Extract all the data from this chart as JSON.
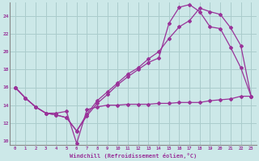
{
  "xlabel": "Windchill (Refroidissement éolien,°C)",
  "background_color": "#cce8e8",
  "grid_color": "#aacccc",
  "line_color": "#993399",
  "xlim": [
    -0.5,
    23.5
  ],
  "ylim": [
    9.5,
    25.5
  ],
  "xticks": [
    0,
    1,
    2,
    3,
    4,
    5,
    6,
    7,
    8,
    9,
    10,
    11,
    12,
    13,
    14,
    15,
    16,
    17,
    18,
    19,
    20,
    21,
    22,
    23
  ],
  "yticks": [
    10,
    12,
    14,
    16,
    18,
    20,
    22,
    24
  ],
  "line1_x": [
    0,
    1,
    2,
    3,
    4,
    5,
    6,
    7,
    8,
    9,
    10,
    11,
    12,
    13,
    14,
    15,
    16,
    17,
    18,
    19,
    20,
    21,
    22,
    23
  ],
  "line1_y": [
    16.0,
    14.8,
    13.8,
    13.1,
    12.9,
    12.6,
    11.1,
    13.0,
    14.5,
    15.5,
    16.5,
    17.5,
    18.2,
    19.2,
    20.0,
    21.5,
    22.8,
    23.5,
    24.9,
    24.5,
    24.2,
    22.7,
    20.7,
    15.0
  ],
  "line2_x": [
    0,
    1,
    2,
    3,
    4,
    5,
    6,
    7,
    8,
    9,
    10,
    11,
    12,
    13,
    14,
    15,
    16,
    17,
    18,
    19,
    20,
    21,
    22,
    23
  ],
  "line2_y": [
    16.0,
    14.8,
    13.8,
    13.1,
    12.9,
    12.6,
    11.1,
    12.8,
    14.2,
    15.2,
    16.3,
    17.2,
    18.0,
    18.8,
    19.3,
    23.2,
    25.0,
    25.3,
    24.5,
    22.8,
    22.6,
    20.5,
    18.2,
    15.0
  ],
  "line3_x": [
    0,
    1,
    2,
    3,
    4,
    5,
    6,
    7,
    8,
    9,
    10,
    11,
    12,
    13,
    14,
    15,
    16,
    17,
    18,
    19,
    20,
    21,
    22,
    23
  ],
  "line3_y": [
    16.0,
    14.8,
    13.8,
    13.1,
    13.1,
    13.3,
    9.7,
    13.5,
    13.8,
    14.0,
    14.0,
    14.1,
    14.1,
    14.1,
    14.2,
    14.2,
    14.3,
    14.3,
    14.3,
    14.5,
    14.6,
    14.7,
    15.0,
    15.0
  ]
}
